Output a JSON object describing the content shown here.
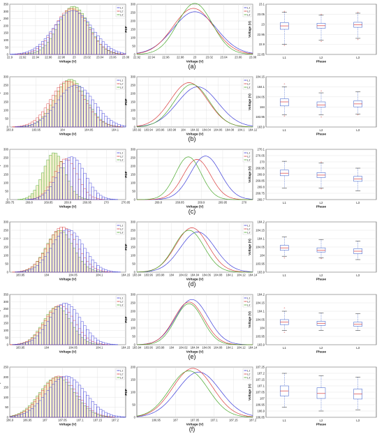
{
  "figure": {
    "colors": {
      "L1": "#3b3bd9",
      "L2": "#d93b3b",
      "L3": "#4aa82c",
      "hist_fill": "#f3eecb",
      "axis": "#333333",
      "grid": "#dddddd",
      "box": "#4f6fd0",
      "median": "#d93b3b",
      "outlier": "#d93b3b"
    }
  },
  "chart_data": [
    {
      "row": "a",
      "panel": "histogram",
      "type": "bar",
      "title": "",
      "xlabel": "Voltage (V)",
      "ylabel": "Number of samples",
      "xlim": [
        22.9,
        23.08
      ],
      "ylim": [
        0,
        350
      ],
      "xticks": [
        "22.9",
        "22.92",
        "22.94",
        "22.96",
        "22.98",
        "23",
        "23.02",
        "23.04",
        "23.06",
        "23.08"
      ],
      "yticks": [
        "0",
        "50",
        "100",
        "150",
        "200",
        "250",
        "300",
        "350"
      ],
      "legend": [
        "L1",
        "L2",
        "L3"
      ],
      "series": [
        {
          "name": "L1",
          "mean": 22.998,
          "sd": 0.03,
          "peak": 305
        },
        {
          "name": "L2",
          "mean": 22.996,
          "sd": 0.026,
          "peak": 320
        },
        {
          "name": "L3",
          "mean": 22.999,
          "sd": 0.024,
          "peak": 335
        }
      ]
    },
    {
      "row": "a",
      "panel": "pdf",
      "type": "line",
      "xlabel": "Voltage (V)",
      "ylabel": "PDF",
      "xlim": [
        22.92,
        23.08
      ],
      "ylim": [
        0,
        300
      ],
      "xticks": [
        "22.92",
        "22.94",
        "22.96",
        "22.98",
        "23",
        "23.02",
        "23.04",
        "23.06",
        "23.08"
      ],
      "yticks": [
        "0",
        "50",
        "100",
        "150",
        "200",
        "250",
        "300"
      ],
      "legend": [
        "L1",
        "L2",
        "L3"
      ],
      "series": [
        {
          "name": "L1",
          "mean": 23.0,
          "sd": 0.03,
          "peak": 255
        },
        {
          "name": "L2",
          "mean": 22.998,
          "sd": 0.028,
          "peak": 275
        },
        {
          "name": "L3",
          "mean": 23.0,
          "sd": 0.024,
          "peak": 305
        }
      ]
    },
    {
      "row": "a",
      "panel": "box",
      "type": "box",
      "xlabel": "Phase",
      "ylabel": "Voltage (V)",
      "ylim": [
        22.85,
        23.1
      ],
      "yticks": [
        "22.85",
        "22.9",
        "22.95",
        "23",
        "23.05",
        "23.1"
      ],
      "categories": [
        "L1",
        "L2",
        "L3"
      ],
      "boxes": [
        {
          "min": 22.9,
          "q1": 22.975,
          "median": 22.992,
          "q3": 23.008,
          "max": 23.06,
          "outliers": [
            22.895,
            23.065
          ]
        },
        {
          "min": 22.92,
          "q1": 22.98,
          "median": 22.993,
          "q3": 23.005,
          "max": 23.045,
          "outliers": [
            22.915,
            23.05
          ]
        },
        {
          "min": 22.93,
          "q1": 22.985,
          "median": 22.997,
          "q3": 23.01,
          "max": 23.055,
          "outliers": [
            22.925,
            23.06
          ]
        }
      ]
    },
    {
      "row": "b",
      "panel": "histogram",
      "type": "bar",
      "xlabel": "Voltage (V)",
      "ylabel": "Number of samples",
      "xlim": [
        183.9,
        184.12
      ],
      "ylim": [
        0,
        300
      ],
      "xticks": [
        "183.9",
        "183.95",
        "184",
        "184.05",
        "184.1"
      ],
      "yticks": [
        "0",
        "50",
        "100",
        "150",
        "200",
        "250",
        "300"
      ],
      "legend": [
        "L1",
        "L2",
        "L3"
      ],
      "series": [
        {
          "name": "L1",
          "mean": 184.025,
          "sd": 0.035,
          "peak": 250
        },
        {
          "name": "L2",
          "mean": 184.01,
          "sd": 0.032,
          "peak": 275
        },
        {
          "name": "L3",
          "mean": 184.015,
          "sd": 0.03,
          "peak": 285
        }
      ]
    },
    {
      "row": "b",
      "panel": "pdf",
      "type": "line",
      "xlabel": "Voltage (V)",
      "ylabel": "PDF",
      "xlim": [
        183.92,
        184.12
      ],
      "ylim": [
        0,
        300
      ],
      "xticks": [
        "183.92",
        "183.94",
        "183.96",
        "183.98",
        "184",
        "184.02",
        "184.04",
        "184.06",
        "184.08",
        "184.1",
        "184.12"
      ],
      "yticks": [
        "0",
        "50",
        "100",
        "150",
        "200",
        "250",
        "300"
      ],
      "legend": [
        "L1",
        "L2",
        "L3"
      ],
      "series": [
        {
          "name": "L1",
          "mean": 184.025,
          "sd": 0.035,
          "peak": 240
        },
        {
          "name": "L2",
          "mean": 184.01,
          "sd": 0.032,
          "peak": 265
        },
        {
          "name": "L3",
          "mean": 184.015,
          "sd": 0.03,
          "peak": 255
        }
      ]
    },
    {
      "row": "b",
      "panel": "box",
      "type": "box",
      "xlabel": "Phase",
      "ylabel": "Voltage (V)",
      "ylim": [
        183.9,
        184.15
      ],
      "yticks": [
        "183.9",
        "183.95",
        "184",
        "184.05",
        "184.1",
        "184.15"
      ],
      "categories": [
        "L1",
        "L2",
        "L3"
      ],
      "boxes": [
        {
          "min": 183.96,
          "q1": 184.005,
          "median": 184.025,
          "q3": 184.04,
          "max": 184.1,
          "outliers": [
            183.955,
            184.115
          ]
        },
        {
          "min": 183.96,
          "q1": 183.998,
          "median": 184.01,
          "q3": 184.025,
          "max": 184.07,
          "outliers": [
            183.95,
            184.08
          ]
        },
        {
          "min": 183.965,
          "q1": 184.0,
          "median": 184.015,
          "q3": 184.03,
          "max": 184.075,
          "outliers": [
            183.96
          ]
        }
      ]
    },
    {
      "row": "c",
      "panel": "histogram",
      "type": "bar",
      "xlabel": "Voltage (V)",
      "ylabel": "Number of samples",
      "xlim": [
        269.75,
        270.05
      ],
      "ylim": [
        0,
        300
      ],
      "xticks": [
        "269.75",
        "269.8",
        "269.85",
        "269.9",
        "269.95",
        "270",
        "270.05"
      ],
      "yticks": [
        "0",
        "50",
        "100",
        "150",
        "200",
        "250",
        "300"
      ],
      "legend": [
        "L1",
        "L2",
        "L3"
      ],
      "series": [
        {
          "name": "L1",
          "mean": 269.91,
          "sd": 0.035,
          "peak": 255
        },
        {
          "name": "L2",
          "mean": 269.895,
          "sd": 0.03,
          "peak": 245
        },
        {
          "name": "L3",
          "mean": 269.865,
          "sd": 0.028,
          "peak": 280
        }
      ]
    },
    {
      "row": "c",
      "panel": "pdf",
      "type": "line",
      "xlabel": "Voltage (V)",
      "ylabel": "PDF",
      "xlim": [
        269.75,
        270.02
      ],
      "ylim": [
        0,
        300
      ],
      "xticks": [
        "269.8",
        "269.85",
        "269.9",
        "269.95",
        "270"
      ],
      "yticks": [
        "0",
        "50",
        "100",
        "150",
        "200",
        "250",
        "300"
      ],
      "legend": [
        "L1",
        "L2",
        "L3"
      ],
      "series": [
        {
          "name": "L1",
          "mean": 269.91,
          "sd": 0.035,
          "peak": 260
        },
        {
          "name": "L2",
          "mean": 269.89,
          "sd": 0.032,
          "peak": 240
        },
        {
          "name": "L3",
          "mean": 269.87,
          "sd": 0.03,
          "peak": 255
        }
      ]
    },
    {
      "row": "c",
      "panel": "box",
      "type": "box",
      "xlabel": "Phase",
      "ylabel": "Voltage (V)",
      "ylim": [
        269.7,
        270.1
      ],
      "yticks": [
        "269.7",
        "269.75",
        "269.8",
        "269.85",
        "269.9",
        "269.95",
        "270",
        "270.05",
        "270.1"
      ],
      "categories": [
        "L1",
        "L2",
        "L3"
      ],
      "boxes": [
        {
          "min": 269.79,
          "q1": 269.89,
          "median": 269.91,
          "q3": 269.935,
          "max": 270.005,
          "outliers": []
        },
        {
          "min": 269.79,
          "q1": 269.875,
          "median": 269.895,
          "q3": 269.915,
          "max": 269.99,
          "outliers": [
            269.785,
            270.0
          ]
        },
        {
          "min": 269.77,
          "q1": 269.845,
          "median": 269.865,
          "q3": 269.885,
          "max": 269.95,
          "outliers": []
        }
      ]
    },
    {
      "row": "d",
      "panel": "histogram",
      "type": "bar",
      "xlabel": "Voltage (V)",
      "ylabel": "Number of samples",
      "xlim": [
        183.93,
        184.15
      ],
      "ylim": [
        0,
        300
      ],
      "xticks": [
        "183.95",
        "184",
        "184.05",
        "184.1",
        "184.15"
      ],
      "yticks": [
        "0",
        "50",
        "100",
        "150",
        "200",
        "250",
        "300"
      ],
      "legend": [
        "L1",
        "L2",
        "L3"
      ],
      "series": [
        {
          "name": "L1",
          "mean": 184.04,
          "sd": 0.03,
          "peak": 255
        },
        {
          "name": "L2",
          "mean": 184.03,
          "sd": 0.028,
          "peak": 270
        },
        {
          "name": "L3",
          "mean": 184.025,
          "sd": 0.026,
          "peak": 250
        }
      ]
    },
    {
      "row": "d",
      "panel": "pdf",
      "type": "line",
      "xlabel": "Voltage (V)",
      "ylabel": "PDF",
      "xlim": [
        183.94,
        184.14
      ],
      "ylim": [
        0,
        300
      ],
      "xticks": [
        "183.94",
        "183.96",
        "183.98",
        "184",
        "184.02",
        "184.04",
        "184.06",
        "184.08",
        "184.1",
        "184.12",
        "184.14"
      ],
      "yticks": [
        "0",
        "50",
        "100",
        "150",
        "200",
        "250",
        "300"
      ],
      "legend": [
        "L1",
        "L2",
        "L3"
      ],
      "series": [
        {
          "name": "L1",
          "mean": 184.045,
          "sd": 0.03,
          "peak": 240
        },
        {
          "name": "L2",
          "mean": 184.035,
          "sd": 0.028,
          "peak": 265
        },
        {
          "name": "L3",
          "mean": 184.03,
          "sd": 0.026,
          "peak": 250
        }
      ]
    },
    {
      "row": "d",
      "panel": "box",
      "type": "box",
      "xlabel": "Phase",
      "ylabel": "Voltage (V)",
      "ylim": [
        183.9,
        184.2
      ],
      "yticks": [
        "183.9",
        "183.95",
        "184",
        "184.05",
        "184.1",
        "184.15",
        "184.2"
      ],
      "categories": [
        "L1",
        "L2",
        "L3"
      ],
      "boxes": [
        {
          "min": 183.995,
          "q1": 184.03,
          "median": 184.045,
          "q3": 184.06,
          "max": 184.11,
          "outliers": [
            183.985
          ]
        },
        {
          "min": 183.985,
          "q1": 184.02,
          "median": 184.03,
          "q3": 184.045,
          "max": 184.095,
          "outliers": [
            183.98
          ]
        },
        {
          "min": 183.975,
          "q1": 184.01,
          "median": 184.025,
          "q3": 184.04,
          "max": 184.085,
          "outliers": []
        }
      ]
    },
    {
      "row": "e",
      "panel": "histogram",
      "type": "bar",
      "xlabel": "Voltage (V)",
      "ylabel": "Number of samples",
      "xlim": [
        183.93,
        184.15
      ],
      "ylim": [
        0,
        350
      ],
      "xticks": [
        "183.95",
        "184",
        "184.05",
        "184.1",
        "184.15"
      ],
      "yticks": [
        "0",
        "50",
        "100",
        "150",
        "200",
        "250",
        "300",
        "350"
      ],
      "legend": [
        "L1",
        "L2",
        "L3"
      ],
      "series": [
        {
          "name": "L1",
          "mean": 184.035,
          "sd": 0.03,
          "peak": 290
        },
        {
          "name": "L2",
          "mean": 184.025,
          "sd": 0.028,
          "peak": 275
        },
        {
          "name": "L3",
          "mean": 184.02,
          "sd": 0.026,
          "peak": 265
        }
      ]
    },
    {
      "row": "e",
      "panel": "pdf",
      "type": "line",
      "xlabel": "Voltage (V)",
      "ylabel": "PDF",
      "xlim": [
        183.94,
        184.14
      ],
      "ylim": [
        0,
        300
      ],
      "xticks": [
        "183.94",
        "183.96",
        "183.98",
        "184",
        "184.02",
        "184.04",
        "184.06",
        "184.08",
        "184.1",
        "184.12",
        "184.14"
      ],
      "yticks": [
        "0",
        "50",
        "100",
        "150",
        "200",
        "250",
        "300"
      ],
      "legend": [
        "L1",
        "L2",
        "L3"
      ],
      "series": [
        {
          "name": "L1",
          "mean": 184.035,
          "sd": 0.028,
          "peak": 270
        },
        {
          "name": "L2",
          "mean": 184.03,
          "sd": 0.026,
          "peak": 255
        },
        {
          "name": "L3",
          "mean": 184.03,
          "sd": 0.024,
          "peak": 245
        }
      ]
    },
    {
      "row": "e",
      "panel": "box",
      "type": "box",
      "xlabel": "Phase",
      "ylabel": "Voltage (V)",
      "ylim": [
        183.9,
        184.2
      ],
      "yticks": [
        "183.9",
        "183.95",
        "184",
        "184.05",
        "184.1",
        "184.15",
        "184.2"
      ],
      "categories": [
        "L1",
        "L2",
        "L3"
      ],
      "boxes": [
        {
          "min": 183.985,
          "q1": 184.02,
          "median": 184.035,
          "q3": 184.05,
          "max": 184.1,
          "outliers": [
            184.12,
            183.975
          ]
        },
        {
          "min": 183.985,
          "q1": 184.015,
          "median": 184.028,
          "q3": 184.04,
          "max": 184.09,
          "outliers": []
        },
        {
          "min": 183.985,
          "q1": 184.01,
          "median": 184.022,
          "q3": 184.035,
          "max": 184.085,
          "outliers": []
        }
      ]
    },
    {
      "row": "f",
      "panel": "histogram",
      "type": "bar",
      "xlabel": "Voltage (V)",
      "ylabel": "Number of samples",
      "xlim": [
        186.9,
        187.23
      ],
      "ylim": [
        0,
        250
      ],
      "xticks": [
        "186.9",
        "186.95",
        "187",
        "187.05",
        "187.1",
        "187.15",
        "187.2"
      ],
      "yticks": [
        "0",
        "50",
        "100",
        "150",
        "200",
        "250"
      ],
      "legend": [
        "L1",
        "L2",
        "L3"
      ],
      "series": [
        {
          "name": "L1",
          "mean": 187.06,
          "sd": 0.055,
          "peak": 205
        },
        {
          "name": "L2",
          "mean": 187.04,
          "sd": 0.05,
          "peak": 205
        },
        {
          "name": "L3",
          "mean": 187.035,
          "sd": 0.05,
          "peak": 200
        }
      ]
    },
    {
      "row": "f",
      "panel": "pdf",
      "type": "line",
      "xlabel": "Voltage (V)",
      "ylabel": "PDF",
      "xlim": [
        186.9,
        187.2
      ],
      "ylim": [
        0,
        200
      ],
      "xticks": [
        "186.95",
        "187",
        "187.05",
        "187.1",
        "187.15",
        "187.2"
      ],
      "yticks": [
        "0",
        "50",
        "100",
        "150",
        "200"
      ],
      "legend": [
        "L1",
        "L2",
        "L3"
      ],
      "series": [
        {
          "name": "L1",
          "mean": 187.06,
          "sd": 0.055,
          "peak": 180
        },
        {
          "name": "L2",
          "mean": 187.045,
          "sd": 0.052,
          "peak": 195
        },
        {
          "name": "L3",
          "mean": 187.035,
          "sd": 0.05,
          "peak": 185
        }
      ]
    },
    {
      "row": "f",
      "panel": "box",
      "type": "box",
      "xlabel": "Phase",
      "ylabel": "Voltage (V)",
      "ylim": [
        186.85,
        187.25
      ],
      "yticks": [
        "186.85",
        "186.9",
        "186.95",
        "187",
        "187.05",
        "187.1",
        "187.15",
        "187.2",
        "187.25"
      ],
      "categories": [
        "L1",
        "L2",
        "L3"
      ],
      "boxes": [
        {
          "min": 186.93,
          "q1": 187.02,
          "median": 187.06,
          "q3": 187.1,
          "max": 187.2,
          "outliers": []
        },
        {
          "min": 186.9,
          "q1": 187.0,
          "median": 187.04,
          "q3": 187.085,
          "max": 187.18,
          "outliers": []
        },
        {
          "min": 186.91,
          "q1": 186.995,
          "median": 187.035,
          "q3": 187.075,
          "max": 187.17,
          "outliers": []
        }
      ]
    }
  ],
  "row_labels": [
    "(a)",
    "(b)",
    "(c)",
    "(d)",
    "(e)",
    "(f)"
  ]
}
